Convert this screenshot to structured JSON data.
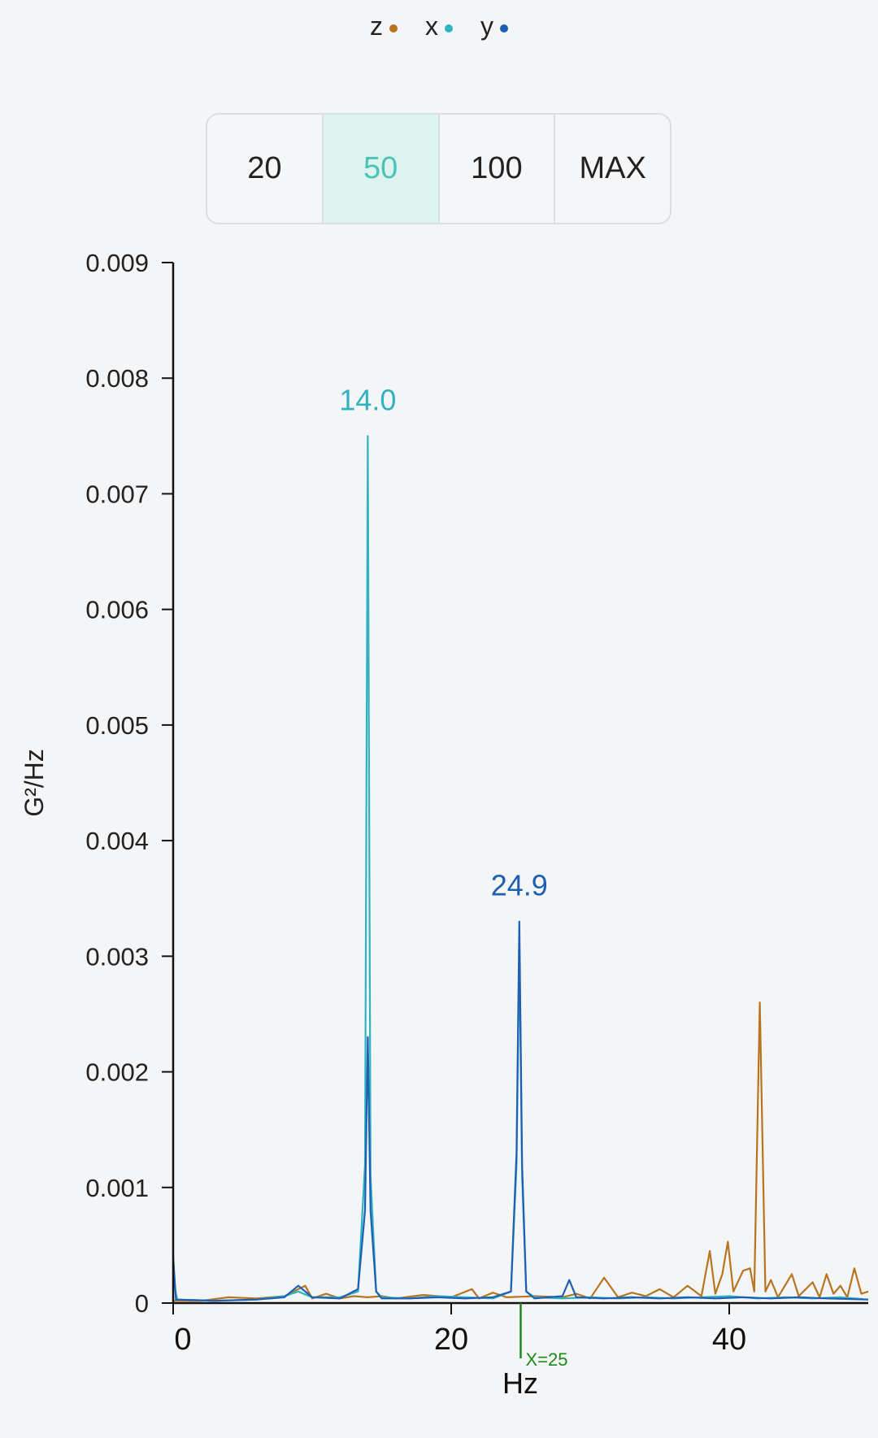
{
  "legend": [
    {
      "label": "z",
      "color": "#b8741f"
    },
    {
      "label": "x",
      "color": "#2fb3c1"
    },
    {
      "label": "y",
      "color": "#1e5fb3"
    }
  ],
  "range_buttons": [
    {
      "label": "20",
      "active": false
    },
    {
      "label": "50",
      "active": true
    },
    {
      "label": "100",
      "active": false
    },
    {
      "label": "MAX",
      "active": false
    }
  ],
  "chart_data": {
    "type": "line",
    "xlabel": "Hz",
    "ylabel": "G²/Hz",
    "xlim": [
      0,
      50
    ],
    "ylim": [
      0,
      0.009
    ],
    "x_ticks": [
      "0",
      "20",
      "40"
    ],
    "y_ticks": [
      "0",
      "0.001",
      "0.002",
      "0.003",
      "0.004",
      "0.005",
      "0.006",
      "0.007",
      "0.008",
      "0.009"
    ],
    "marker": {
      "x": 25,
      "label": "X=25",
      "color": "#1a8a1a"
    },
    "peak_labels": [
      {
        "x": 14.0,
        "y": 0.0075,
        "text": "14.0",
        "color": "#2fb3c1"
      },
      {
        "x": 24.9,
        "y": 0.0033,
        "text": "24.9",
        "color": "#1e5fb3"
      }
    ],
    "series": [
      {
        "name": "z",
        "color": "#b8741f",
        "points": [
          [
            0,
            2e-05
          ],
          [
            2,
            2e-05
          ],
          [
            4,
            5e-05
          ],
          [
            6,
            4e-05
          ],
          [
            8,
            6e-05
          ],
          [
            9.5,
            0.00015
          ],
          [
            10,
            4e-05
          ],
          [
            11,
            8e-05
          ],
          [
            12,
            4e-05
          ],
          [
            13,
            6e-05
          ],
          [
            14,
            5e-05
          ],
          [
            15,
            6e-05
          ],
          [
            16,
            4e-05
          ],
          [
            18,
            7e-05
          ],
          [
            20,
            5e-05
          ],
          [
            21.5,
            0.00012
          ],
          [
            22,
            4e-05
          ],
          [
            23,
            9e-05
          ],
          [
            24,
            5e-05
          ],
          [
            26,
            6e-05
          ],
          [
            28,
            5e-05
          ],
          [
            29,
            8e-05
          ],
          [
            30,
            4e-05
          ],
          [
            31,
            0.00022
          ],
          [
            32,
            5e-05
          ],
          [
            33,
            9e-05
          ],
          [
            34,
            6e-05
          ],
          [
            35,
            0.00012
          ],
          [
            36,
            5e-05
          ],
          [
            37,
            0.00015
          ],
          [
            38,
            6e-05
          ],
          [
            38.6,
            0.00045
          ],
          [
            39,
            8e-05
          ],
          [
            39.5,
            0.00025
          ],
          [
            39.9,
            0.00053
          ],
          [
            40.3,
            0.0001
          ],
          [
            41,
            0.00028
          ],
          [
            41.5,
            0.0003
          ],
          [
            41.8,
            0.0001
          ],
          [
            42.2,
            0.0026
          ],
          [
            42.6,
            0.0001
          ],
          [
            43,
            0.0002
          ],
          [
            43.5,
            5e-05
          ],
          [
            44.5,
            0.00025
          ],
          [
            45,
            6e-05
          ],
          [
            46,
            0.00018
          ],
          [
            46.5,
            5e-05
          ],
          [
            47,
            0.00025
          ],
          [
            47.5,
            8e-05
          ],
          [
            48,
            0.00015
          ],
          [
            48.5,
            5e-05
          ],
          [
            49,
            0.0003
          ],
          [
            49.5,
            8e-05
          ],
          [
            50,
            0.0001
          ]
        ]
      },
      {
        "name": "x",
        "color": "#2fb3c1",
        "points": [
          [
            0,
            0.0002
          ],
          [
            0.3,
            3e-05
          ],
          [
            3,
            2e-05
          ],
          [
            6,
            3e-05
          ],
          [
            8,
            6e-05
          ],
          [
            9,
            0.0001
          ],
          [
            10,
            5e-05
          ],
          [
            12,
            5e-05
          ],
          [
            13.3,
            0.0001
          ],
          [
            13.8,
            0.0012
          ],
          [
            14.0,
            0.0075
          ],
          [
            14.2,
            0.0011
          ],
          [
            14.6,
            0.0001
          ],
          [
            15,
            5e-05
          ],
          [
            17,
            4e-05
          ],
          [
            19,
            6e-05
          ],
          [
            21,
            5e-05
          ],
          [
            23,
            4e-05
          ],
          [
            24.3,
            0.0001
          ],
          [
            24.7,
            0.0012
          ],
          [
            24.9,
            0.0031
          ],
          [
            25.1,
            0.0011
          ],
          [
            25.4,
            0.0001
          ],
          [
            26,
            5e-05
          ],
          [
            28,
            4e-05
          ],
          [
            30,
            5e-05
          ],
          [
            32,
            4e-05
          ],
          [
            34,
            5e-05
          ],
          [
            36,
            4e-05
          ],
          [
            38,
            5e-05
          ],
          [
            40,
            6e-05
          ],
          [
            42,
            4e-05
          ],
          [
            44,
            5e-05
          ],
          [
            46,
            4e-05
          ],
          [
            48,
            5e-05
          ],
          [
            50,
            3e-05
          ]
        ]
      },
      {
        "name": "y",
        "color": "#1e5fb3",
        "points": [
          [
            0,
            0.0004
          ],
          [
            0.2,
            3e-05
          ],
          [
            3,
            2e-05
          ],
          [
            6,
            3e-05
          ],
          [
            8,
            5e-05
          ],
          [
            9,
            0.00015
          ],
          [
            10,
            5e-05
          ],
          [
            12,
            4e-05
          ],
          [
            13.3,
            0.00012
          ],
          [
            13.8,
            0.0008
          ],
          [
            14.0,
            0.0023
          ],
          [
            14.2,
            0.0008
          ],
          [
            14.6,
            0.0001
          ],
          [
            15,
            4e-05
          ],
          [
            17,
            4e-05
          ],
          [
            19,
            5e-05
          ],
          [
            21,
            4e-05
          ],
          [
            23,
            5e-05
          ],
          [
            24.3,
            0.0001
          ],
          [
            24.7,
            0.0013
          ],
          [
            24.9,
            0.0033
          ],
          [
            25.1,
            0.0012
          ],
          [
            25.4,
            0.0001
          ],
          [
            26,
            4e-05
          ],
          [
            28,
            6e-05
          ],
          [
            28.5,
            0.0002
          ],
          [
            29,
            5e-05
          ],
          [
            31,
            4e-05
          ],
          [
            33,
            5e-05
          ],
          [
            35,
            4e-05
          ],
          [
            37,
            5e-05
          ],
          [
            39,
            4e-05
          ],
          [
            41,
            5e-05
          ],
          [
            43,
            4e-05
          ],
          [
            45,
            5e-05
          ],
          [
            47,
            4e-05
          ],
          [
            50,
            3e-05
          ]
        ]
      }
    ]
  }
}
